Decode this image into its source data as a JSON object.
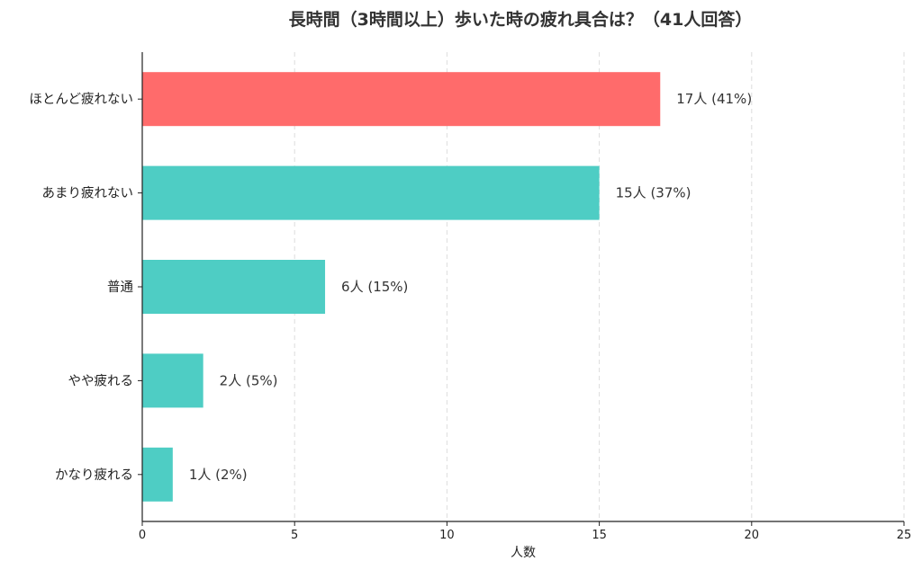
{
  "chart_data": {
    "type": "bar",
    "orientation": "horizontal",
    "title": "長時間（3時間以上）歩いた時の疲れ具合は？（41人回答）",
    "xlabel": "人数",
    "ylabel": "",
    "xlim": [
      0,
      25
    ],
    "xticks": [
      "0",
      "5",
      "10",
      "15",
      "20",
      "25"
    ],
    "grid": "vertical dashed",
    "categories": [
      "ほとんど疲れない",
      "あまり疲れない",
      "普通",
      "やや疲れる",
      "かなり疲れる"
    ],
    "values": [
      17,
      15,
      6,
      2,
      1
    ],
    "data_labels": [
      "17人 (41%)",
      "15人 (37%)",
      "6人 (15%)",
      "2人 (5%)",
      "1人 (2%)"
    ],
    "colors": [
      "#ff6b6b",
      "#4ecdc4",
      "#4ecdc4",
      "#4ecdc4",
      "#4ecdc4"
    ]
  }
}
